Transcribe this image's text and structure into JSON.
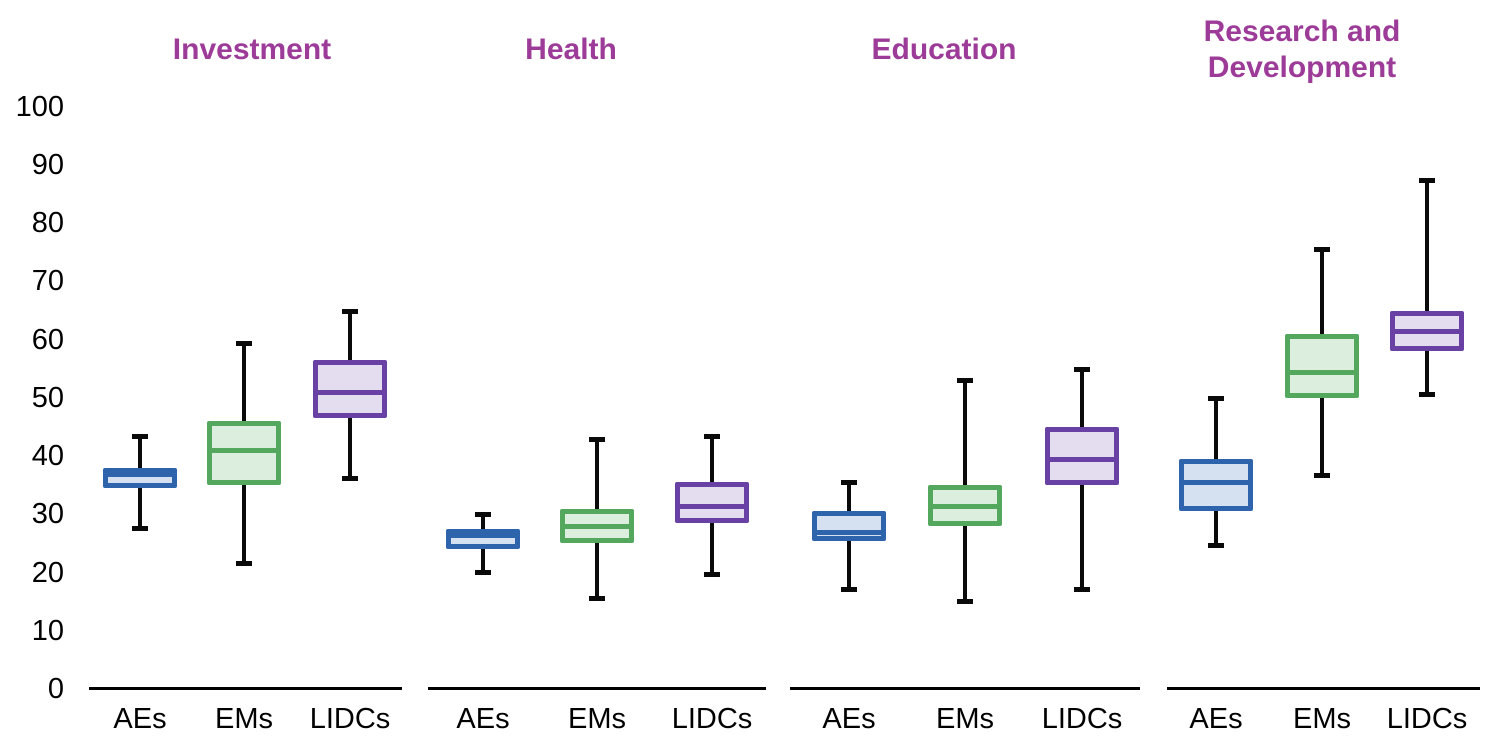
{
  "chart_data": {
    "type": "boxplot",
    "title": "",
    "ylabel": "",
    "xlabel": "",
    "ylim": [
      0,
      100
    ],
    "yticks": [
      0,
      10,
      20,
      30,
      40,
      50,
      60,
      70,
      80,
      90,
      100
    ],
    "grid": false,
    "legend": false,
    "title_color": "#9C3B98",
    "categories": [
      "AEs",
      "EMs",
      "LIDCs"
    ],
    "series_styles": [
      {
        "name": "AEs",
        "border": "#2D64AB",
        "fill": "#D5E1F0"
      },
      {
        "name": "EMs",
        "border": "#53A85E",
        "fill": "#DCEFDE"
      },
      {
        "name": "LIDCs",
        "border": "#6941A5",
        "fill": "#E4DDF0"
      }
    ],
    "whisker_color": "#0A0A0A",
    "groups": [
      {
        "label": "Investment",
        "boxes": [
          {
            "category": "AEs",
            "min": 27.5,
            "q1": 34.5,
            "median": 37,
            "q3": 38,
            "max": 43.5
          },
          {
            "category": "EMs",
            "min": 21.5,
            "q1": 35,
            "median": 41,
            "q3": 46,
            "max": 59.5
          },
          {
            "category": "LIDCs",
            "min": 36,
            "q1": 46.5,
            "median": 51,
            "q3": 56.5,
            "max": 65
          }
        ]
      },
      {
        "label": "Health",
        "boxes": [
          {
            "category": "AEs",
            "min": 20,
            "q1": 24,
            "median": 26.5,
            "q3": 27.5,
            "max": 30
          },
          {
            "category": "EMs",
            "min": 15.5,
            "q1": 25,
            "median": 28,
            "q3": 31,
            "max": 43
          },
          {
            "category": "LIDCs",
            "min": 19.5,
            "q1": 28.5,
            "median": 31.5,
            "q3": 35.5,
            "max": 43.5
          }
        ]
      },
      {
        "label": "Education",
        "boxes": [
          {
            "category": "AEs",
            "min": 17,
            "q1": 25.5,
            "median": 27,
            "q3": 30.5,
            "max": 35.5
          },
          {
            "category": "EMs",
            "min": 15,
            "q1": 28,
            "median": 31.5,
            "q3": 35,
            "max": 53
          },
          {
            "category": "LIDCs",
            "min": 17,
            "q1": 35,
            "median": 39.5,
            "q3": 45,
            "max": 55
          }
        ]
      },
      {
        "label": "Research and Development",
        "boxes": [
          {
            "category": "AEs",
            "min": 24.5,
            "q1": 30.5,
            "median": 35.5,
            "q3": 39.5,
            "max": 50
          },
          {
            "category": "EMs",
            "min": 36.5,
            "q1": 50,
            "median": 54.5,
            "q3": 61,
            "max": 75.5
          },
          {
            "category": "LIDCs",
            "min": 50.5,
            "q1": 58,
            "median": 61.5,
            "q3": 65,
            "max": 87.5
          }
        ]
      }
    ]
  }
}
